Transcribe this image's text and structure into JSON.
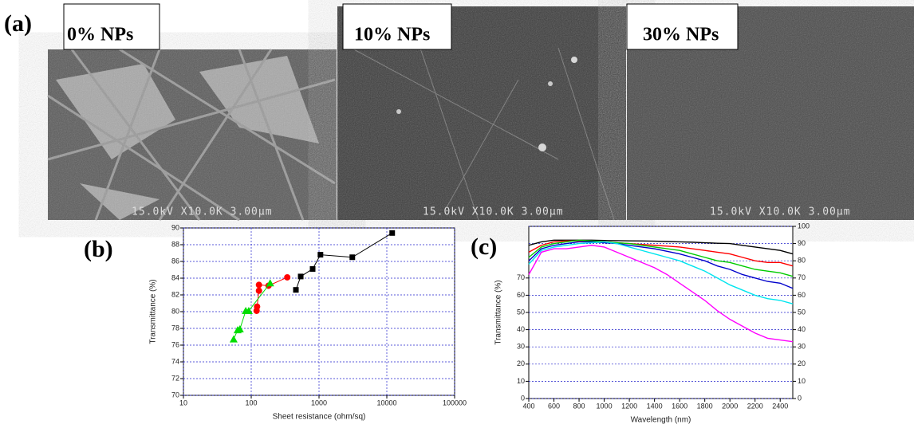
{
  "panels": {
    "a": "(a)",
    "b": "(b)",
    "c": "(c)"
  },
  "images": [
    {
      "label": "0% NPs",
      "scale": "15.0kV X10.0K 3.00µm"
    },
    {
      "label": "10% NPs",
      "scale": "15.0kV X10.0K 3.00µm"
    },
    {
      "label": "30% NPs",
      "scale": "15.0kV X10.0K 3.00µm"
    }
  ],
  "chart_data": [
    {
      "type": "scatter",
      "xlabel": "Sheet resistance (ohm/sq)",
      "ylabel": "Transmittance (%)",
      "xscale": "log",
      "xlim": [
        10,
        100000
      ],
      "xticks": [
        10,
        100,
        1000,
        10000,
        100000
      ],
      "ylim": [
        70,
        90
      ],
      "yticks": [
        70,
        72,
        74,
        76,
        78,
        80,
        82,
        84,
        86,
        88,
        90
      ],
      "grid": true,
      "series": [
        {
          "color": "#000000",
          "marker": "square",
          "x": [
            456,
            537,
            805,
            1050,
            3100,
            12000
          ],
          "values": [
            82.6,
            84.2,
            85.1,
            86.8,
            86.5,
            89.4
          ]
        },
        {
          "color": "#ff0000",
          "marker": "circle",
          "x": [
            120,
            122,
            130,
            130,
            180,
            340
          ],
          "values": [
            80.1,
            80.6,
            82.5,
            83.2,
            83.1,
            84.1
          ]
        },
        {
          "color": "#00dd00",
          "marker": "triangle",
          "x": [
            55,
            63,
            68,
            83,
            92,
            190
          ],
          "values": [
            76.7,
            77.8,
            77.9,
            80.1,
            80.1,
            83.4
          ]
        }
      ]
    },
    {
      "type": "line",
      "xlabel": "Wavelength (nm)",
      "ylabel": "Transmittance (%)",
      "xlim": [
        400,
        2500
      ],
      "xticks": [
        400,
        600,
        800,
        1000,
        1200,
        1400,
        1600,
        1800,
        2000,
        2200,
        2400
      ],
      "ylim": [
        0,
        100
      ],
      "yticks": [
        0,
        10,
        20,
        30,
        40,
        50,
        60,
        70
      ],
      "y2lim": [
        0,
        100
      ],
      "y2ticks": [
        0,
        10,
        20,
        30,
        40,
        50,
        60,
        70,
        80,
        90,
        100
      ],
      "grid": true,
      "x": [
        400,
        500,
        600,
        700,
        800,
        900,
        1000,
        1100,
        1200,
        1300,
        1400,
        1500,
        1600,
        1700,
        1800,
        1900,
        2000,
        2100,
        2200,
        2300,
        2400,
        2500
      ],
      "series": [
        {
          "color": "#000000",
          "values": [
            89,
            91,
            92,
            92,
            92,
            92,
            91.8,
            91.7,
            91.6,
            91.5,
            91.4,
            91.2,
            91,
            90.8,
            90.5,
            90.2,
            90,
            89,
            88,
            87,
            86,
            84
          ]
        },
        {
          "color": "#ff0000",
          "values": [
            85,
            89,
            91,
            91.5,
            91.5,
            91.3,
            91,
            90.5,
            90,
            89.5,
            89,
            88.5,
            88,
            87,
            86,
            85,
            84,
            82,
            80,
            79,
            79,
            77
          ]
        },
        {
          "color": "#00cc00",
          "values": [
            82,
            88,
            90,
            91,
            92,
            91.5,
            91,
            90.5,
            90,
            89,
            88,
            87,
            86,
            84,
            82,
            80,
            79,
            77,
            75,
            74,
            73,
            71
          ]
        },
        {
          "color": "#0000cc",
          "values": [
            80,
            87,
            89,
            90,
            91,
            91,
            90.5,
            90,
            89,
            88,
            87,
            85.5,
            84,
            82,
            80,
            77,
            75,
            72,
            70,
            68,
            67,
            64
          ]
        },
        {
          "color": "#00e5ee",
          "values": [
            78,
            86,
            88,
            89,
            90,
            90.5,
            91,
            90,
            88,
            86,
            84,
            82,
            80,
            77,
            74,
            70,
            66,
            63,
            60,
            58,
            57,
            55
          ]
        },
        {
          "color": "#ff00ff",
          "values": [
            72,
            85,
            87,
            87,
            88,
            89,
            88,
            85,
            82,
            79,
            76,
            72,
            67,
            62,
            57,
            51,
            46,
            42,
            38,
            35,
            34,
            33
          ]
        }
      ]
    }
  ]
}
